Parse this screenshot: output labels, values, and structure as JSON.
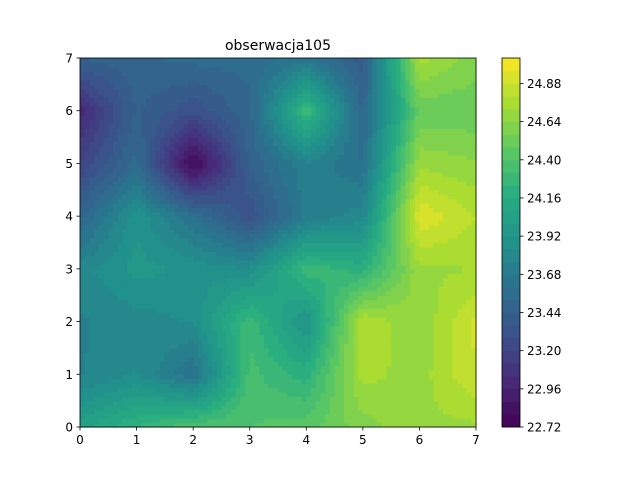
{
  "chart_data": {
    "type": "heatmap",
    "subtype": "filled-contour",
    "title": "obserwacja105",
    "xlabel": "",
    "ylabel": "",
    "x": [
      0,
      1,
      2,
      3,
      4,
      5,
      6,
      7
    ],
    "y": [
      0,
      1,
      2,
      3,
      4,
      5,
      6,
      7
    ],
    "xlim": [
      0,
      7
    ],
    "ylim": [
      0,
      7
    ],
    "x_ticks": [
      "0",
      "1",
      "2",
      "3",
      "4",
      "5",
      "6",
      "7"
    ],
    "y_ticks": [
      "0",
      "1",
      "2",
      "3",
      "4",
      "5",
      "6",
      "7"
    ],
    "z": [
      [
        24.05,
        24.25,
        24.4,
        24.4,
        24.45,
        24.6,
        24.7,
        24.7
      ],
      [
        23.75,
        23.85,
        23.6,
        24.35,
        24.2,
        24.75,
        24.68,
        24.88
      ],
      [
        23.75,
        23.8,
        23.85,
        24.3,
        23.9,
        24.8,
        24.65,
        24.9
      ],
      [
        23.8,
        23.95,
        23.9,
        23.85,
        24.3,
        24.2,
        24.7,
        24.72
      ],
      [
        23.5,
        23.9,
        23.6,
        23.3,
        23.7,
        23.8,
        24.95,
        24.8
      ],
      [
        23.2,
        23.55,
        22.75,
        23.45,
        23.75,
        23.6,
        24.7,
        24.65
      ],
      [
        23.0,
        23.45,
        23.3,
        23.5,
        24.3,
        23.5,
        24.5,
        24.5
      ],
      [
        23.45,
        23.5,
        23.55,
        23.55,
        23.65,
        23.4,
        24.75,
        24.6
      ]
    ],
    "zlim": [
      22.72,
      25.04
    ],
    "colormap": "viridis",
    "colorbar_ticks": [
      "22.72",
      "22.96",
      "23.20",
      "23.44",
      "23.68",
      "23.92",
      "24.16",
      "24.40",
      "24.64",
      "24.88"
    ],
    "colorbar_tick_values": [
      22.72,
      22.96,
      23.2,
      23.44,
      23.68,
      23.92,
      24.16,
      24.4,
      24.64,
      24.88
    ],
    "levels_step": 0.08,
    "grid": false
  }
}
